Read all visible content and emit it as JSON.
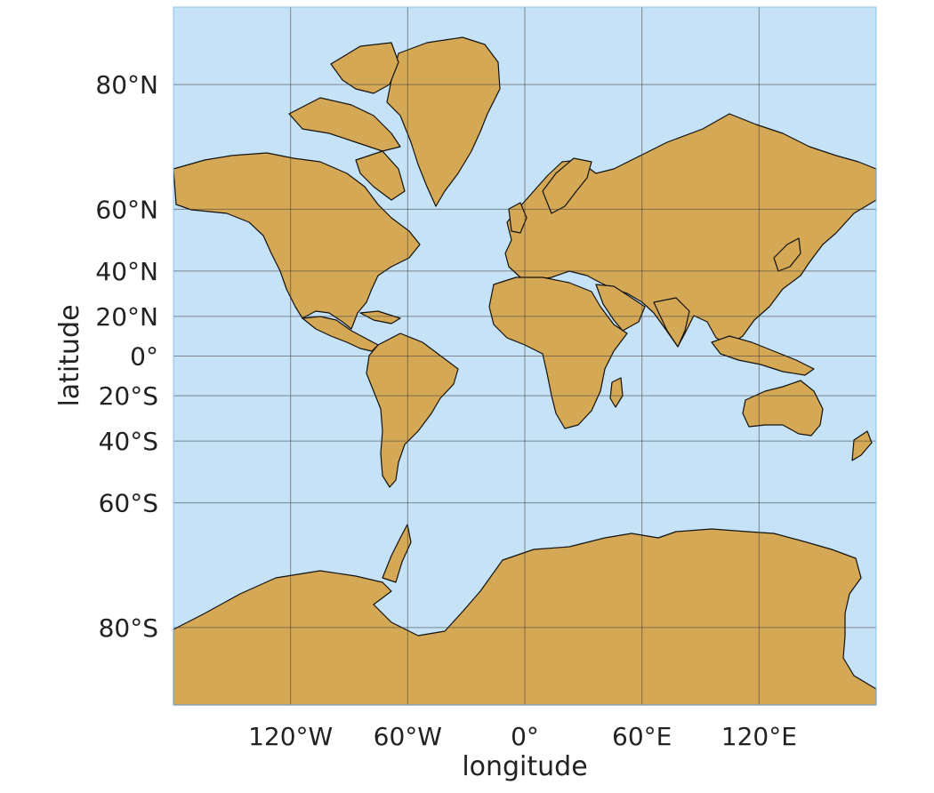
{
  "map": {
    "projection": "Mercator",
    "colors": {
      "ocean": "#c6e2f6",
      "land": "#d4a855",
      "border": "#111111",
      "grid": "#3a3a3a",
      "frame": "#8cc4e8"
    },
    "axes": {
      "x_label": "longitude",
      "y_label": "latitude",
      "x_ticks": [
        {
          "value": -120,
          "label": "120°W"
        },
        {
          "value": -60,
          "label": "60°W"
        },
        {
          "value": 0,
          "label": "0°"
        },
        {
          "value": 60,
          "label": "60°E"
        },
        {
          "value": 120,
          "label": "120°E"
        }
      ],
      "y_ticks": [
        {
          "value": 80,
          "label": "80°N"
        },
        {
          "value": 60,
          "label": "60°N"
        },
        {
          "value": 40,
          "label": "40°N"
        },
        {
          "value": 20,
          "label": "20°N"
        },
        {
          "value": 0,
          "label": "0°"
        },
        {
          "value": -20,
          "label": "20°S"
        },
        {
          "value": -40,
          "label": "40°S"
        },
        {
          "value": -60,
          "label": "60°S"
        },
        {
          "value": -80,
          "label": "80°S"
        }
      ],
      "lon_range": [
        -180,
        180
      ],
      "lat_range": [
        -85,
        85
      ]
    }
  }
}
